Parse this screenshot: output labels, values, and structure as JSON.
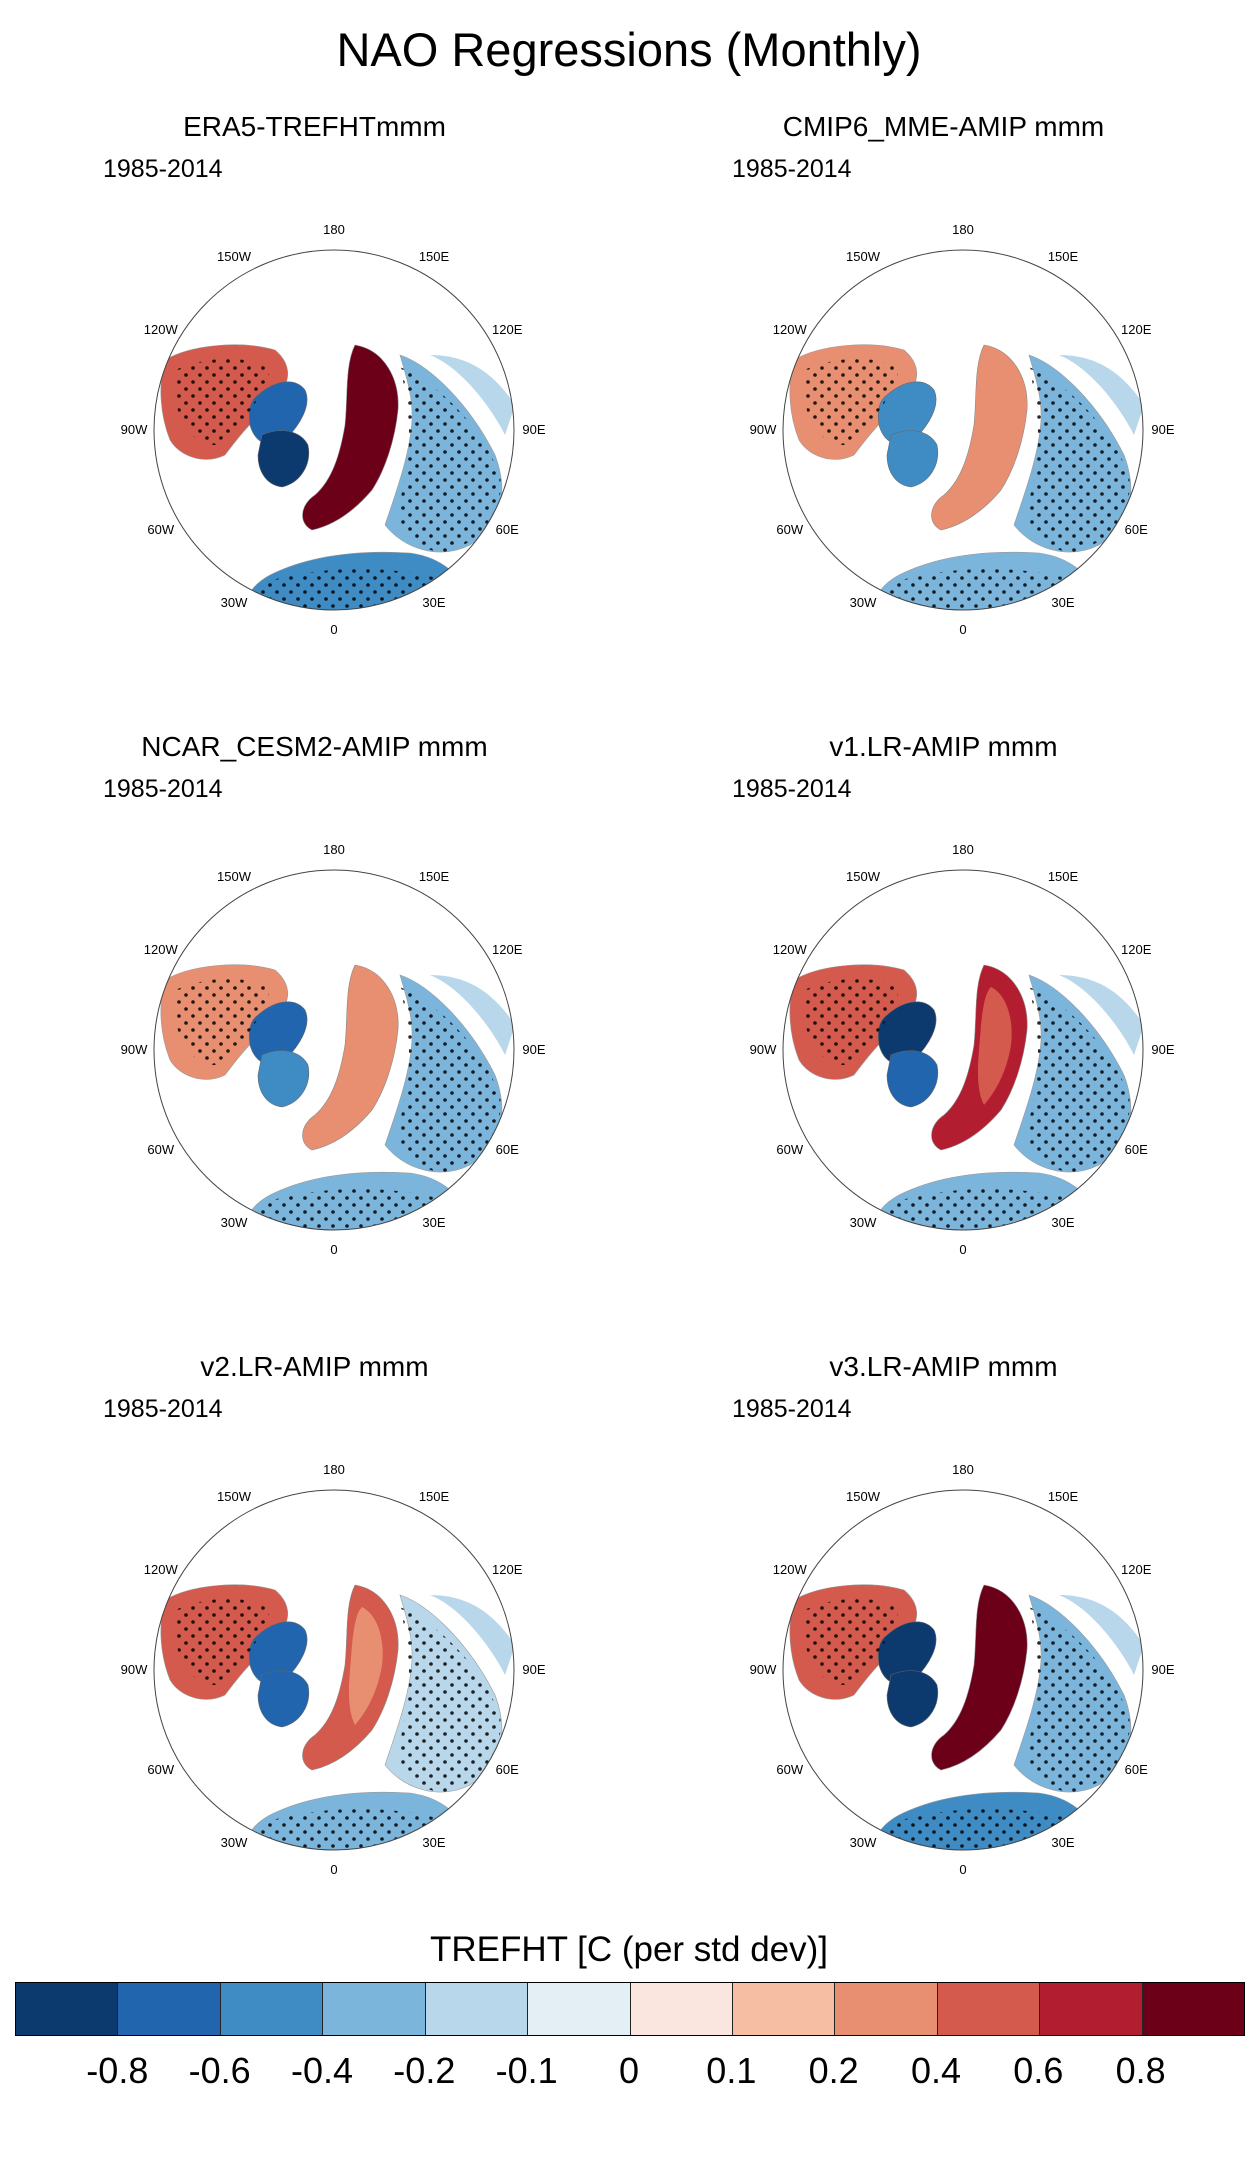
{
  "figure_title": "NAO Regressions (Monthly)",
  "period": "1985-2014",
  "longitude_labels": [
    "180",
    "150E",
    "120E",
    "90E",
    "60E",
    "30E",
    "0",
    "30W",
    "60W",
    "90W",
    "120W",
    "150W"
  ],
  "panels": [
    {
      "title": "ERA5-TREFHTmmm",
      "period": "1985-2014"
    },
    {
      "title": "CMIP6_MME-AMIP  mmm",
      "period": "1985-2014"
    },
    {
      "title": "NCAR_CESM2-AMIP  mmm",
      "period": "1985-2014"
    },
    {
      "title": "v1.LR-AMIP  mmm",
      "period": "1985-2014"
    },
    {
      "title": "v2.LR-AMIP  mmm",
      "period": "1985-2014"
    },
    {
      "title": "v3.LR-AMIP  mmm",
      "period": "1985-2014"
    }
  ],
  "colorbar": {
    "title": "TREFHT [C (per std dev)]",
    "labels": [
      "-0.8",
      "-0.6",
      "-0.4",
      "-0.2",
      "-0.1",
      "0",
      "0.1",
      "0.2",
      "0.4",
      "0.6",
      "0.8"
    ],
    "colors": [
      "#0d3a6e",
      "#2065ad",
      "#3f8cc5",
      "#7cb5dc",
      "#b8d7ea",
      "#e3eef5",
      "#fae6df",
      "#f6bea2",
      "#e88f72",
      "#d35a4d",
      "#b21e2f",
      "#6b0018"
    ]
  }
}
